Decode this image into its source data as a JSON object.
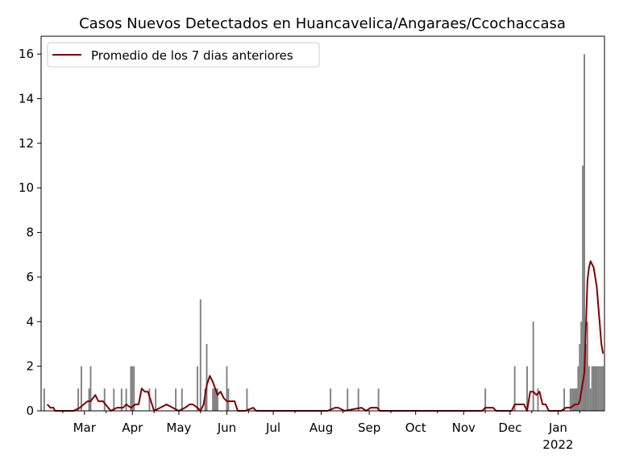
{
  "chart_data": {
    "type": "bar",
    "title": "Casos Nuevos Detectados en Huancavelica/Angaraes/Ccochaccasa",
    "xlabel": "",
    "ylabel": "",
    "ylim": [
      0,
      16.8
    ],
    "yticks": [
      0,
      2,
      4,
      6,
      8,
      10,
      12,
      14,
      16
    ],
    "xlim": [
      "2021-02-01",
      "2022-01-31"
    ],
    "xticks": [
      {
        "date": "2021-03-01",
        "label": "Mar"
      },
      {
        "date": "2021-04-01",
        "label": "Apr"
      },
      {
        "date": "2021-05-01",
        "label": "May"
      },
      {
        "date": "2021-06-01",
        "label": "Jun"
      },
      {
        "date": "2021-07-01",
        "label": "Jul"
      },
      {
        "date": "2021-08-01",
        "label": "Aug"
      },
      {
        "date": "2021-09-01",
        "label": "Sep"
      },
      {
        "date": "2021-10-01",
        "label": "Oct"
      },
      {
        "date": "2021-11-01",
        "label": "Nov"
      },
      {
        "date": "2021-12-01",
        "label": "Dec"
      },
      {
        "date": "2022-01-01",
        "label": "Jan",
        "sublabel": "2022"
      }
    ],
    "legend": {
      "position": "top-left",
      "entries": [
        "Promedio de los 7 dias anteriores"
      ]
    },
    "grid": false,
    "colors": {
      "bars": "#808080",
      "line": "#800000"
    },
    "series": [
      {
        "type": "bar",
        "x": [
          "2021-02-03",
          "2021-02-25",
          "2021-02-27",
          "2021-03-04",
          "2021-03-05",
          "2021-03-14",
          "2021-03-20",
          "2021-03-25",
          "2021-03-28",
          "2021-03-31",
          "2021-04-01",
          "2021-04-02",
          "2021-04-12",
          "2021-04-16",
          "2021-04-29",
          "2021-05-03",
          "2021-05-13",
          "2021-05-15",
          "2021-05-18",
          "2021-05-19",
          "2021-05-23",
          "2021-05-24",
          "2021-05-25",
          "2021-05-26",
          "2021-06-01",
          "2021-06-02",
          "2021-06-14",
          "2021-08-07",
          "2021-08-18",
          "2021-08-25",
          "2021-09-07",
          "2021-11-15",
          "2021-12-04",
          "2021-12-12",
          "2021-12-16",
          "2021-12-19",
          "2022-01-05",
          "2022-01-09",
          "2022-01-10",
          "2022-01-11",
          "2022-01-12",
          "2022-01-13",
          "2022-01-14",
          "2022-01-15",
          "2022-01-16",
          "2022-01-17",
          "2022-01-18",
          "2022-01-19",
          "2022-01-20",
          "2022-01-21",
          "2022-01-22",
          "2022-01-23",
          "2022-01-24",
          "2022-01-25",
          "2022-01-26",
          "2022-01-27",
          "2022-01-28",
          "2022-01-29",
          "2022-01-30"
        ],
        "values": [
          1,
          1,
          2,
          1,
          2,
          1,
          1,
          1,
          1,
          2,
          2,
          2,
          1,
          1,
          1,
          1,
          2,
          5,
          1,
          3,
          1,
          1,
          1,
          1,
          2,
          1,
          1,
          1,
          1,
          1,
          1,
          1,
          2,
          2,
          4,
          1,
          1,
          1,
          1,
          1,
          1,
          1,
          2,
          3,
          4,
          11,
          16,
          3,
          4,
          2,
          1,
          2,
          2,
          2,
          2,
          2,
          2,
          2,
          2
        ]
      },
      {
        "type": "line",
        "name": "Promedio de los 7 dias anteriores",
        "x": [
          "2021-02-05",
          "2021-02-07",
          "2021-02-09",
          "2021-02-10",
          "2021-02-22",
          "2021-02-26",
          "2021-03-03",
          "2021-03-05",
          "2021-03-08",
          "2021-03-10",
          "2021-03-13",
          "2021-03-18",
          "2021-03-22",
          "2021-03-26",
          "2021-03-28",
          "2021-03-31",
          "2021-04-03",
          "2021-04-05",
          "2021-04-07",
          "2021-04-09",
          "2021-04-11",
          "2021-04-15",
          "2021-04-19",
          "2021-04-23",
          "2021-04-27",
          "2021-05-01",
          "2021-05-05",
          "2021-05-08",
          "2021-05-10",
          "2021-05-13",
          "2021-05-15",
          "2021-05-17",
          "2021-05-19",
          "2021-05-21",
          "2021-05-23",
          "2021-05-26",
          "2021-05-28",
          "2021-05-30",
          "2021-06-01",
          "2021-06-06",
          "2021-06-08",
          "2021-06-13",
          "2021-06-18",
          "2021-06-20",
          "2021-08-05",
          "2021-08-10",
          "2021-08-12",
          "2021-08-16",
          "2021-08-27",
          "2021-08-30",
          "2021-09-02",
          "2021-09-06",
          "2021-09-08",
          "2021-11-13",
          "2021-11-15",
          "2021-11-20",
          "2021-11-22",
          "2021-12-02",
          "2021-12-04",
          "2021-12-10",
          "2021-12-12",
          "2021-12-14",
          "2021-12-16",
          "2021-12-18",
          "2021-12-20",
          "2021-12-22",
          "2021-12-24",
          "2021-12-26",
          "2021-12-30",
          "2022-01-03",
          "2022-01-06",
          "2022-01-09",
          "2022-01-12",
          "2022-01-14",
          "2022-01-15",
          "2022-01-16",
          "2022-01-18",
          "2022-01-20",
          "2022-01-21",
          "2022-01-22",
          "2022-01-24",
          "2022-01-26",
          "2022-01-27",
          "2022-01-29",
          "2022-01-30"
        ],
        "values": [
          0.29,
          0.14,
          0.14,
          0,
          0,
          0.14,
          0.43,
          0.43,
          0.71,
          0.43,
          0.43,
          0,
          0.14,
          0.14,
          0.29,
          0.14,
          0.29,
          0.29,
          1.0,
          0.86,
          0.86,
          0,
          0.14,
          0.29,
          0.14,
          0,
          0.14,
          0.29,
          0.29,
          0.14,
          0,
          0.29,
          1.14,
          1.57,
          1.29,
          0.71,
          0.86,
          0.57,
          0.43,
          0.43,
          0,
          0,
          0.14,
          0,
          0,
          0.14,
          0.14,
          0,
          0.14,
          0,
          0.14,
          0.14,
          0,
          0,
          0.14,
          0.14,
          0,
          0,
          0.29,
          0.29,
          0,
          0.86,
          0.86,
          0.71,
          0.86,
          0.29,
          0.29,
          0,
          0,
          0,
          0.14,
          0.14,
          0.29,
          0.29,
          0.43,
          0.86,
          1.71,
          5.86,
          6.43,
          6.71,
          6.43,
          5.57,
          4.71,
          3.0,
          2.57
        ]
      }
    ]
  }
}
